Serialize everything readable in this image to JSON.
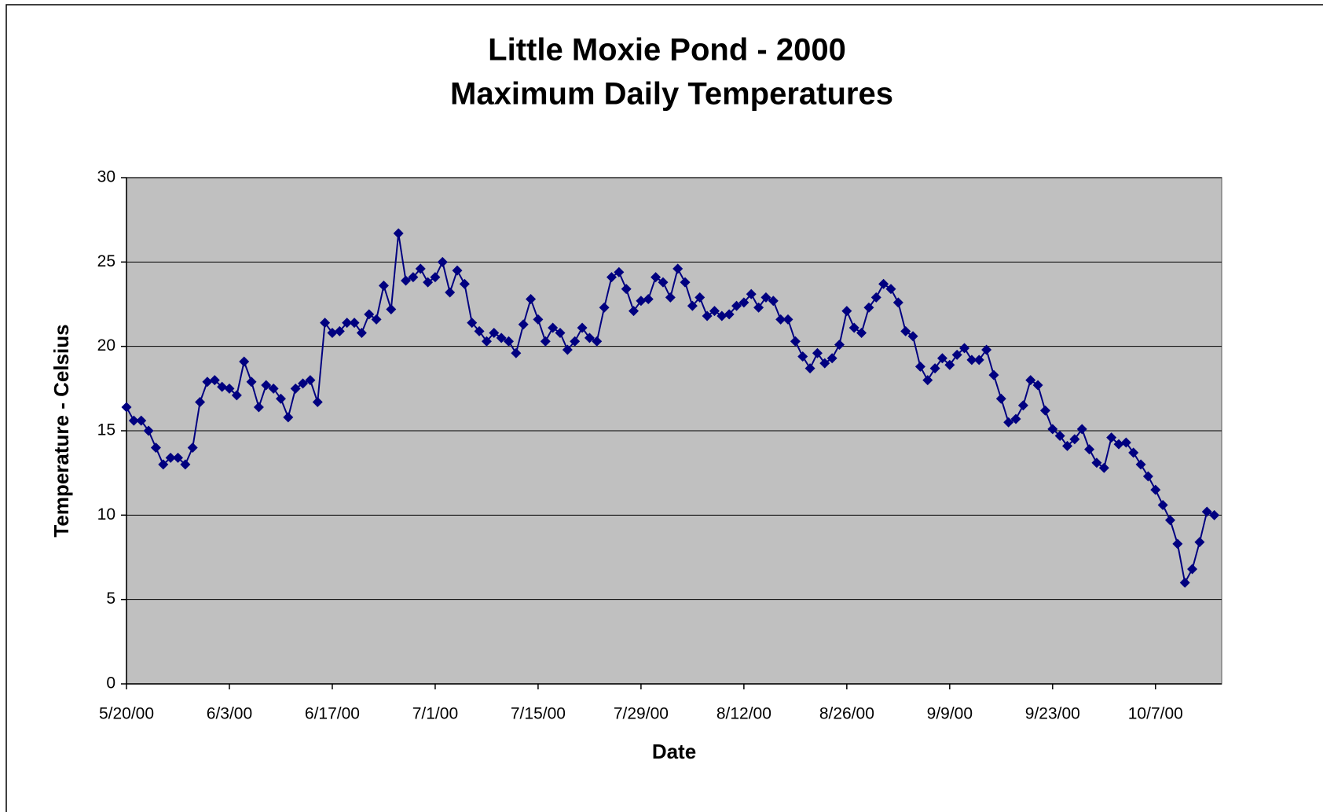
{
  "chart_data": {
    "type": "line",
    "title": [
      "Little Moxie Pond - 2000",
      "Maximum Daily Temperatures"
    ],
    "xlabel": "Date",
    "ylabel": "Temperature - Celsius",
    "x": [
      "5/20/00",
      "5/21/00",
      "5/22/00",
      "5/23/00",
      "5/24/00",
      "5/25/00",
      "5/26/00",
      "5/27/00",
      "5/28/00",
      "5/29/00",
      "5/30/00",
      "5/31/00",
      "6/1/00",
      "6/2/00",
      "6/3/00",
      "6/4/00",
      "6/5/00",
      "6/6/00",
      "6/7/00",
      "6/8/00",
      "6/9/00",
      "6/10/00",
      "6/11/00",
      "6/12/00",
      "6/13/00",
      "6/14/00",
      "6/15/00",
      "6/16/00",
      "6/17/00",
      "6/18/00",
      "6/19/00",
      "6/20/00",
      "6/21/00",
      "6/22/00",
      "6/23/00",
      "6/24/00",
      "6/25/00",
      "6/26/00",
      "6/27/00",
      "6/28/00",
      "6/29/00",
      "6/30/00",
      "7/1/00",
      "7/2/00",
      "7/3/00",
      "7/4/00",
      "7/5/00",
      "7/6/00",
      "7/7/00",
      "7/8/00",
      "7/9/00",
      "7/10/00",
      "7/11/00",
      "7/12/00",
      "7/13/00",
      "7/14/00",
      "7/15/00",
      "7/16/00",
      "7/17/00",
      "7/18/00",
      "7/19/00",
      "7/20/00",
      "7/21/00",
      "7/22/00",
      "7/23/00",
      "7/24/00",
      "7/25/00",
      "7/26/00",
      "7/27/00",
      "7/28/00",
      "7/29/00",
      "7/30/00",
      "7/31/00",
      "8/1/00",
      "8/2/00",
      "8/3/00",
      "8/4/00",
      "8/5/00",
      "8/6/00",
      "8/7/00",
      "8/8/00",
      "8/9/00",
      "8/10/00",
      "8/11/00",
      "8/12/00",
      "8/13/00",
      "8/14/00",
      "8/15/00",
      "8/16/00",
      "8/17/00",
      "8/18/00",
      "8/19/00",
      "8/20/00",
      "8/21/00",
      "8/22/00",
      "8/23/00",
      "8/24/00",
      "8/25/00",
      "8/26/00",
      "8/27/00",
      "8/28/00",
      "8/29/00",
      "8/30/00",
      "8/31/00",
      "9/1/00",
      "9/2/00",
      "9/3/00",
      "9/4/00",
      "9/5/00",
      "9/6/00",
      "9/7/00",
      "9/8/00",
      "9/9/00",
      "9/10/00",
      "9/11/00",
      "9/12/00",
      "9/13/00",
      "9/14/00",
      "9/15/00",
      "9/16/00",
      "9/17/00",
      "9/18/00",
      "9/19/00",
      "9/20/00",
      "9/21/00",
      "9/22/00",
      "9/23/00",
      "9/24/00",
      "9/25/00",
      "9/26/00",
      "9/27/00",
      "9/28/00",
      "9/29/00",
      "9/30/00",
      "10/1/00",
      "10/2/00",
      "10/3/00",
      "10/4/00",
      "10/5/00",
      "10/6/00",
      "10/7/00",
      "10/8/00",
      "10/9/00",
      "10/10/00",
      "10/11/00",
      "10/12/00",
      "10/13/00",
      "10/14/00",
      "10/15/00"
    ],
    "series": [
      {
        "name": "Maximum Daily Temperature",
        "color": "#000080",
        "values": [
          16.4,
          15.6,
          15.6,
          15.0,
          14.0,
          13.0,
          13.4,
          13.4,
          13.0,
          14.0,
          16.7,
          17.9,
          18.0,
          17.6,
          17.5,
          17.1,
          19.1,
          17.9,
          16.4,
          17.7,
          17.5,
          16.9,
          15.8,
          17.5,
          17.8,
          18.0,
          16.7,
          21.4,
          20.8,
          20.9,
          21.4,
          21.4,
          20.8,
          21.9,
          21.6,
          23.6,
          22.2,
          26.7,
          23.9,
          24.1,
          24.6,
          23.8,
          24.1,
          25.0,
          23.2,
          24.5,
          23.7,
          21.4,
          20.9,
          20.3,
          20.8,
          20.5,
          20.3,
          19.6,
          21.3,
          22.8,
          21.6,
          20.3,
          21.1,
          20.8,
          19.8,
          20.3,
          21.1,
          20.5,
          20.3,
          22.3,
          24.1,
          24.4,
          23.4,
          22.1,
          22.7,
          22.8,
          24.1,
          23.8,
          22.9,
          24.6,
          23.8,
          22.4,
          22.9,
          21.8,
          22.1,
          21.8,
          21.9,
          22.4,
          22.6,
          23.1,
          22.3,
          22.9,
          22.7,
          21.6,
          21.6,
          20.3,
          19.4,
          18.7,
          19.6,
          19.0,
          19.3,
          20.1,
          22.1,
          21.1,
          20.8,
          22.3,
          22.9,
          23.7,
          23.4,
          22.6,
          20.9,
          20.6,
          18.8,
          18.0,
          18.7,
          19.3,
          18.9,
          19.5,
          19.9,
          19.2,
          19.2,
          19.8,
          18.3,
          16.9,
          15.5,
          15.7,
          16.5,
          18.0,
          17.7,
          16.2,
          15.1,
          14.7,
          14.1,
          14.5,
          15.1,
          13.9,
          13.1,
          12.8,
          14.6,
          14.2,
          14.3,
          13.7,
          13.0,
          12.3,
          11.5,
          10.6,
          9.7,
          8.3,
          6.0,
          6.8,
          8.4,
          10.2,
          10.0
        ]
      }
    ],
    "xlim": [
      "5/20/00",
      "10/16/00"
    ],
    "xticks": [
      "5/20/00",
      "6/3/00",
      "6/17/00",
      "7/1/00",
      "7/15/00",
      "7/29/00",
      "8/12/00",
      "8/26/00",
      "9/9/00",
      "9/23/00",
      "10/7/00"
    ],
    "ylim": [
      0,
      30
    ],
    "yticks": [
      0,
      5,
      10,
      15,
      20,
      25,
      30
    ],
    "grid": true,
    "plot_background": "#c0c0c0"
  }
}
